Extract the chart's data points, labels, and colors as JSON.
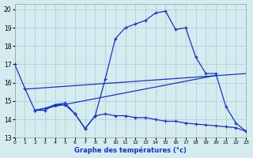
{
  "xlabel": "Graphe des températures (°c)",
  "background_color": "#d4ecf0",
  "grid_color": "#b0c8d0",
  "line_color": "#1833bb",
  "xlim": [
    0,
    23
  ],
  "ylim": [
    13,
    20.3
  ],
  "xticks": [
    0,
    1,
    2,
    3,
    4,
    5,
    6,
    7,
    8,
    9,
    10,
    11,
    12,
    13,
    14,
    15,
    16,
    17,
    18,
    19,
    20,
    21,
    22,
    23
  ],
  "yticks": [
    13,
    14,
    15,
    16,
    17,
    18,
    19,
    20
  ],
  "curve1_x": [
    0,
    1,
    2,
    3,
    4,
    5,
    6,
    7,
    8,
    9,
    10,
    11,
    12,
    13,
    14,
    15,
    16,
    17,
    18,
    19,
    20,
    21,
    22,
    23
  ],
  "curve1_y": [
    17.0,
    15.7,
    14.5,
    14.6,
    14.8,
    14.9,
    14.3,
    13.5,
    14.2,
    16.2,
    18.4,
    19.0,
    19.2,
    19.4,
    19.8,
    19.9,
    18.9,
    19.0,
    17.4,
    16.5,
    16.5,
    14.7,
    13.8,
    13.35
  ],
  "curve2_x": [
    2,
    3,
    4,
    5,
    6,
    7,
    8,
    9,
    10,
    11,
    12,
    13,
    14,
    15,
    16,
    17,
    18,
    19,
    20,
    21,
    22,
    23
  ],
  "curve2_y": [
    14.5,
    14.5,
    14.8,
    14.8,
    14.3,
    13.5,
    14.2,
    14.3,
    14.2,
    14.2,
    14.1,
    14.1,
    14.0,
    13.9,
    13.9,
    13.8,
    13.75,
    13.7,
    13.65,
    13.6,
    13.55,
    13.35
  ],
  "line3_x": [
    1,
    23
  ],
  "line3_y": [
    15.65,
    16.5
  ],
  "line4_x": [
    2,
    20
  ],
  "line4_y": [
    14.5,
    16.4
  ]
}
